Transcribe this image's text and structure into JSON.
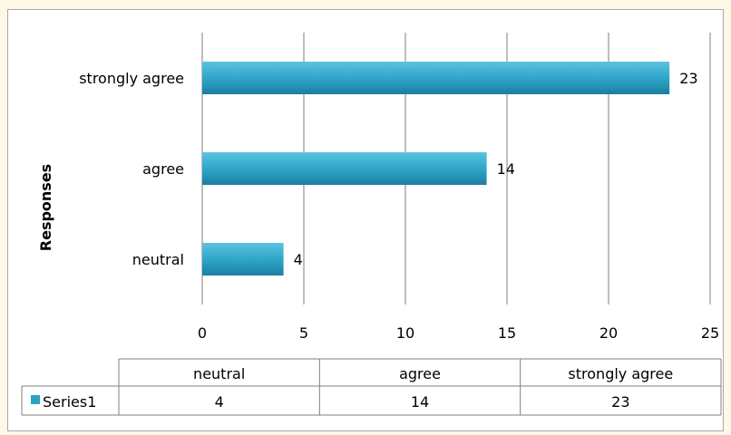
{
  "chart_data": {
    "type": "bar",
    "orientation": "horizontal",
    "categories": [
      "neutral",
      "agree",
      "strongly agree"
    ],
    "series": [
      {
        "name": "Series1",
        "values": [
          4,
          14,
          23
        ],
        "color": "#2ba3c6"
      }
    ],
    "xlim": [
      0,
      25
    ],
    "x_ticks": [
      0,
      5,
      10,
      15,
      20,
      25
    ],
    "ylabel": "Responses",
    "xlabel": "",
    "grid": "vertical",
    "data_labels": true,
    "data_table": true
  },
  "colors": {
    "bar": "#2ba3c6",
    "bar_dark": "#1f7fa0",
    "grid": "#7f7f7f",
    "background": "#fdf9e6"
  }
}
